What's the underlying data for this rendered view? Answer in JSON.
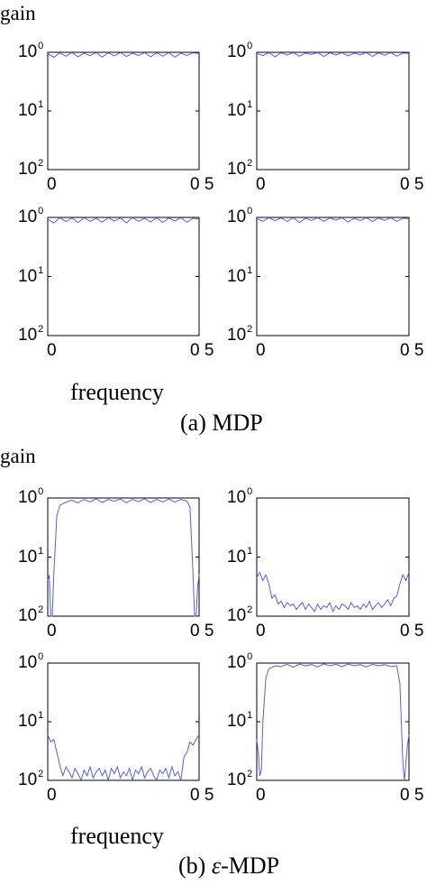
{
  "figure": {
    "top": {
      "ylabel": "gain",
      "xlabel": "frequency",
      "caption": "(a) MDP"
    },
    "bottom": {
      "ylabel": "gain",
      "xlabel": "frequency",
      "caption_prefix": "(b) ",
      "caption_symbol": "ε",
      "caption_suffix": "-MDP"
    }
  },
  "ticks": {
    "y_base": "10",
    "y_exps": [
      "0",
      "1",
      "2"
    ],
    "x_left": "0",
    "x_right": "0 5"
  },
  "colors": {
    "line": "#4f5ff0",
    "axes": "#000000"
  },
  "chart_data": [
    {
      "panel": "(a) MDP, top-left",
      "type": "line",
      "yscale": "log",
      "xlim": [
        0,
        0.5
      ],
      "ylim": [
        0.01,
        1
      ],
      "x": [
        0,
        0.02,
        0.04,
        0.06,
        0.08,
        0.1,
        0.12,
        0.14,
        0.16,
        0.18,
        0.2,
        0.22,
        0.24,
        0.26,
        0.28,
        0.3,
        0.32,
        0.34,
        0.36,
        0.38,
        0.4,
        0.42,
        0.44,
        0.46,
        0.48,
        0.5
      ],
      "y": [
        0.95,
        0.82,
        0.98,
        0.86,
        0.99,
        0.84,
        0.97,
        0.88,
        0.99,
        0.83,
        0.98,
        0.87,
        0.99,
        0.85,
        0.97,
        0.88,
        0.99,
        0.84,
        0.98,
        0.86,
        0.99,
        0.83,
        0.97,
        0.88,
        0.98,
        0.95
      ]
    },
    {
      "panel": "(a) MDP, top-right",
      "type": "line",
      "yscale": "log",
      "xlim": [
        0,
        0.5
      ],
      "ylim": [
        0.01,
        1
      ],
      "x": [
        0,
        0.02,
        0.04,
        0.06,
        0.08,
        0.1,
        0.12,
        0.14,
        0.16,
        0.18,
        0.2,
        0.22,
        0.24,
        0.26,
        0.28,
        0.3,
        0.32,
        0.34,
        0.36,
        0.38,
        0.4,
        0.42,
        0.44,
        0.46,
        0.48,
        0.5
      ],
      "y": [
        0.96,
        0.88,
        0.99,
        0.84,
        0.98,
        0.9,
        0.99,
        0.86,
        0.97,
        0.92,
        0.99,
        0.85,
        0.98,
        0.9,
        0.99,
        0.87,
        0.97,
        0.91,
        0.99,
        0.85,
        0.98,
        0.89,
        0.99,
        0.86,
        0.97,
        0.96
      ]
    },
    {
      "panel": "(a) MDP, bottom-left",
      "type": "line",
      "yscale": "log",
      "xlim": [
        0,
        0.5
      ],
      "ylim": [
        0.01,
        1
      ],
      "x": [
        0,
        0.02,
        0.04,
        0.06,
        0.08,
        0.1,
        0.12,
        0.14,
        0.16,
        0.18,
        0.2,
        0.22,
        0.24,
        0.26,
        0.28,
        0.3,
        0.32,
        0.34,
        0.36,
        0.38,
        0.4,
        0.42,
        0.44,
        0.46,
        0.48,
        0.5
      ],
      "y": [
        0.93,
        0.8,
        0.99,
        0.85,
        0.98,
        0.82,
        0.99,
        0.86,
        0.97,
        0.83,
        0.99,
        0.87,
        0.98,
        0.81,
        0.99,
        0.86,
        0.97,
        0.84,
        0.99,
        0.82,
        0.98,
        0.87,
        0.99,
        0.83,
        0.97,
        0.94
      ]
    },
    {
      "panel": "(a) MDP, bottom-right",
      "type": "line",
      "yscale": "log",
      "xlim": [
        0,
        0.5
      ],
      "ylim": [
        0.01,
        1
      ],
      "x": [
        0,
        0.02,
        0.04,
        0.06,
        0.08,
        0.1,
        0.12,
        0.14,
        0.16,
        0.18,
        0.2,
        0.22,
        0.24,
        0.26,
        0.28,
        0.3,
        0.32,
        0.34,
        0.36,
        0.38,
        0.4,
        0.42,
        0.44,
        0.46,
        0.48,
        0.5
      ],
      "y": [
        0.95,
        0.86,
        0.99,
        0.88,
        0.98,
        0.85,
        0.99,
        0.82,
        0.97,
        0.89,
        0.99,
        0.86,
        0.98,
        0.9,
        0.99,
        0.84,
        0.97,
        0.88,
        0.99,
        0.85,
        0.98,
        0.89,
        0.99,
        0.86,
        0.97,
        0.95
      ]
    },
    {
      "panel": "(b) ε-MDP, top-left",
      "type": "line",
      "yscale": "log",
      "xlim": [
        0,
        0.5
      ],
      "ylim": [
        0.01,
        1
      ],
      "x": [
        0,
        0.005,
        0.01,
        0.015,
        0.02,
        0.03,
        0.04,
        0.06,
        0.08,
        0.1,
        0.12,
        0.14,
        0.16,
        0.18,
        0.2,
        0.22,
        0.24,
        0.26,
        0.28,
        0.3,
        0.32,
        0.34,
        0.36,
        0.38,
        0.4,
        0.42,
        0.44,
        0.46,
        0.47,
        0.48,
        0.485,
        0.49,
        0.495,
        0.5
      ],
      "y": [
        0.04,
        0.05,
        0.01,
        0.01,
        0.05,
        0.5,
        0.75,
        0.85,
        0.92,
        0.83,
        0.95,
        0.86,
        0.97,
        0.84,
        0.95,
        0.88,
        0.96,
        0.83,
        0.95,
        0.87,
        0.97,
        0.84,
        0.95,
        0.86,
        0.96,
        0.85,
        0.95,
        0.88,
        0.7,
        0.05,
        0.01,
        0.01,
        0.03,
        0.05
      ]
    },
    {
      "panel": "(b) ε-MDP, top-right",
      "type": "line",
      "yscale": "log",
      "xlim": [
        0,
        0.5
      ],
      "ylim": [
        0.01,
        1
      ],
      "x": [
        0,
        0.01,
        0.02,
        0.03,
        0.04,
        0.05,
        0.06,
        0.07,
        0.08,
        0.09,
        0.1,
        0.11,
        0.12,
        0.13,
        0.14,
        0.15,
        0.16,
        0.17,
        0.18,
        0.19,
        0.2,
        0.21,
        0.22,
        0.23,
        0.24,
        0.25,
        0.26,
        0.27,
        0.28,
        0.29,
        0.3,
        0.31,
        0.32,
        0.33,
        0.34,
        0.35,
        0.36,
        0.37,
        0.38,
        0.39,
        0.4,
        0.41,
        0.42,
        0.43,
        0.44,
        0.45,
        0.46,
        0.47,
        0.48,
        0.49,
        0.5
      ],
      "y": [
        0.045,
        0.055,
        0.04,
        0.05,
        0.035,
        0.02,
        0.023,
        0.016,
        0.018,
        0.014,
        0.017,
        0.015,
        0.016,
        0.013,
        0.015,
        0.017,
        0.013,
        0.016,
        0.014,
        0.012,
        0.016,
        0.013,
        0.015,
        0.014,
        0.017,
        0.012,
        0.015,
        0.013,
        0.016,
        0.015,
        0.013,
        0.017,
        0.014,
        0.015,
        0.013,
        0.016,
        0.014,
        0.018,
        0.013,
        0.015,
        0.017,
        0.014,
        0.016,
        0.019,
        0.015,
        0.02,
        0.022,
        0.035,
        0.05,
        0.04,
        0.055
      ]
    },
    {
      "panel": "(b) ε-MDP, bottom-left",
      "type": "line",
      "yscale": "log",
      "xlim": [
        0,
        0.5
      ],
      "ylim": [
        0.01,
        1
      ],
      "x": [
        0,
        0.01,
        0.02,
        0.03,
        0.04,
        0.05,
        0.06,
        0.07,
        0.08,
        0.09,
        0.1,
        0.11,
        0.12,
        0.13,
        0.14,
        0.15,
        0.16,
        0.17,
        0.18,
        0.19,
        0.2,
        0.21,
        0.22,
        0.23,
        0.24,
        0.25,
        0.26,
        0.27,
        0.28,
        0.29,
        0.3,
        0.31,
        0.32,
        0.33,
        0.34,
        0.35,
        0.36,
        0.37,
        0.38,
        0.39,
        0.4,
        0.41,
        0.42,
        0.43,
        0.44,
        0.45,
        0.46,
        0.47,
        0.48,
        0.49,
        0.5
      ],
      "y": [
        0.06,
        0.045,
        0.05,
        0.03,
        0.018,
        0.012,
        0.017,
        0.014,
        0.011,
        0.016,
        0.013,
        0.009,
        0.015,
        0.012,
        0.017,
        0.011,
        0.014,
        0.016,
        0.012,
        0.015,
        0.01,
        0.016,
        0.013,
        0.017,
        0.011,
        0.014,
        0.012,
        0.016,
        0.01,
        0.015,
        0.013,
        0.017,
        0.011,
        0.014,
        0.016,
        0.012,
        0.01,
        0.015,
        0.013,
        0.016,
        0.011,
        0.017,
        0.012,
        0.014,
        0.01,
        0.025,
        0.03,
        0.045,
        0.04,
        0.05,
        0.06
      ]
    },
    {
      "panel": "(b) ε-MDP, bottom-right",
      "type": "line",
      "yscale": "log",
      "xlim": [
        0,
        0.5
      ],
      "ylim": [
        0.01,
        1
      ],
      "x": [
        0,
        0.005,
        0.01,
        0.015,
        0.02,
        0.03,
        0.04,
        0.06,
        0.08,
        0.1,
        0.12,
        0.14,
        0.16,
        0.18,
        0.2,
        0.22,
        0.24,
        0.26,
        0.28,
        0.3,
        0.32,
        0.34,
        0.36,
        0.38,
        0.4,
        0.42,
        0.44,
        0.46,
        0.47,
        0.48,
        0.485,
        0.49,
        0.495,
        0.5
      ],
      "y": [
        0.05,
        0.03,
        0.012,
        0.015,
        0.1,
        0.55,
        0.8,
        0.9,
        0.87,
        0.95,
        0.85,
        0.96,
        0.9,
        0.94,
        0.86,
        0.97,
        0.9,
        0.95,
        0.87,
        0.96,
        0.9,
        0.94,
        0.86,
        0.95,
        0.9,
        0.94,
        0.87,
        0.9,
        0.45,
        0.02,
        0.01,
        0.02,
        0.04,
        0.06
      ]
    }
  ]
}
